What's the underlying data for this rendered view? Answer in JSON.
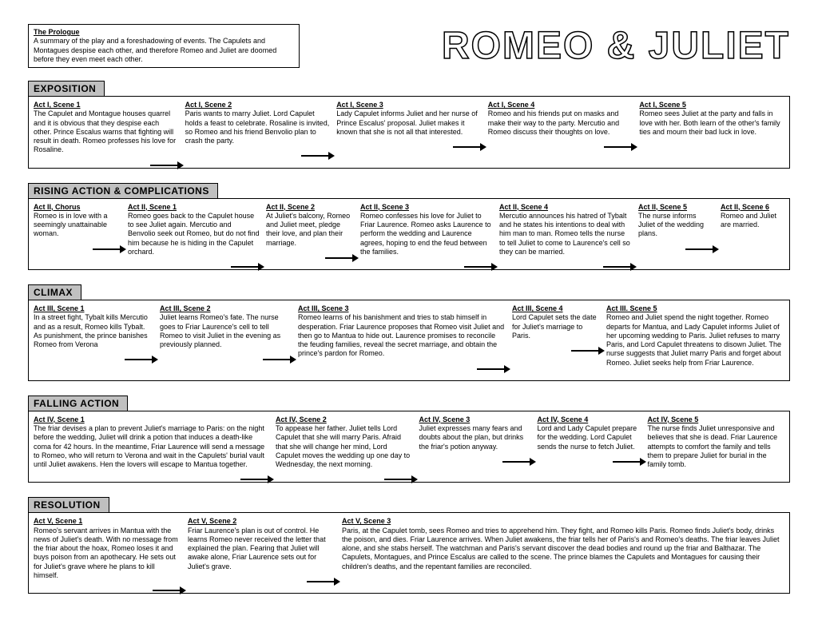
{
  "title": "ROMEO & JULIET",
  "prologue": {
    "heading": "The Prologue",
    "text": "A summary of the play and a foreshadowing of events. The Capulets and Montagues despise each other, and therefore Romeo and Juliet are doomed before they even meet each other."
  },
  "sections": {
    "exposition": {
      "header": "EXPOSITION",
      "scenes": [
        {
          "title": "Act I, Scene 1",
          "text": "The Capulet and Montague houses quarrel and it is obvious that they despise each other. Prince Escalus warns that fighting will result in death. Romeo professes his love for Rosaline."
        },
        {
          "title": "Act I, Scene 2",
          "text": "Paris wants to marry Juliet. Lord Capulet holds a feast to celebrate. Rosaline is invited, so Romeo and his friend Benvolio plan to crash the party."
        },
        {
          "title": "Act I, Scene 3",
          "text": "Lady Capulet informs Juliet and her nurse of Prince Escalus' proposal. Juliet makes it known that she is not all that interested."
        },
        {
          "title": "Act I, Scene 4",
          "text": "Romeo and his friends put on masks and make their way to the party. Mercutio and Romeo discuss their thoughts on love."
        },
        {
          "title": "Act I, Scene 5",
          "text": "Romeo sees Juliet at the party and falls in love with her. Both learn of the other's family ties and mourn their bad luck in love."
        }
      ]
    },
    "rising": {
      "header": "RISING ACTION & COMPLICATIONS",
      "scenes": [
        {
          "title": "Act II, Chorus",
          "text": "Romeo is in love with a seemingly unattainable woman."
        },
        {
          "title": "Act II, Scene 1",
          "text": "Romeo goes back to the Capulet house to see Juliet again. Mercutio and Benvolio seek out Romeo, but do not find him because he is hiding in the Capulet orchard."
        },
        {
          "title": "Act II, Scene 2",
          "text": "At Juliet's balcony, Romeo and Juliet meet, pledge their love, and plan their marriage."
        },
        {
          "title": "Act II, Scene 3",
          "text": "Romeo confesses his love for Juliet to Friar Laurence. Romeo asks Laurence to perform the wedding and Laurence agrees, hoping to end the feud between the families."
        },
        {
          "title": "Act II, Scene 4",
          "text": "Mercutio announces his hatred of Tybalt and he states his intentions to deal with him man to man. Romeo tells the nurse to tell Juliet to come to Laurence's cell so they can be married."
        },
        {
          "title": "Act II, Scene 5",
          "text": "The nurse informs Juliet of the wedding plans."
        },
        {
          "title": "Act II, Scene 6",
          "text": "Romeo and Juliet are married."
        }
      ]
    },
    "climax": {
      "header": "CLIMAX",
      "scenes": [
        {
          "title": "Act III, Scene 1",
          "text": "In a street fight, Tybalt kills Mercutio and as a result, Romeo kills Tybalt. As punishment, the prince banishes Romeo from Verona"
        },
        {
          "title": "Act III, Scene 2",
          "text": "Juliet learns Romeo's fate. The nurse goes to Friar Laurence's cell to tell Romeo to visit Juliet in the evening as previously planned."
        },
        {
          "title": "Act III, Scene 3",
          "text": "Romeo learns of his banishment and tries to stab himself in desperation. Friar Laurence proposes that Romeo visit Juliet and then go to Mantua to hide out. Laurence promises to reconcile the feuding families, reveal the secret marriage, and obtain the prince's pardon for Romeo."
        },
        {
          "title": "Act III, Scene 4",
          "text": "Lord Capulet sets the date for Juliet's marriage to Paris."
        },
        {
          "title": "Act III. Scene 5",
          "text": "Romeo and Juliet spend the night together. Romeo departs for Mantua, and Lady Capulet informs Juliet of her upcoming wedding to Paris. Juliet refuses to marry Paris, and Lord Capulet threatens to disown Juliet. The nurse suggests that Juliet marry Paris and forget about Romeo. Juliet seeks help from Friar Laurence."
        }
      ]
    },
    "falling": {
      "header": "FALLING ACTION",
      "scenes": [
        {
          "title": "Act IV, Scene 1",
          "text": "The friar devises a plan to prevent Juliet's marriage to Paris: on the night before the wedding, Juliet will drink a potion that induces a death-like coma for 42 hours. In the meantime, Friar Laurence will send a message to Romeo, who will return to Verona and wait in the Capulets' burial vault until Juliet awakens. Hen the lovers will escape to Mantua together."
        },
        {
          "title": "Act IV, Scene 2",
          "text": "To appease her father. Juliet tells Lord Capulet that she will marry Paris. Afraid that she will change her mind, Lord Capulet moves the wedding up one day to Wednesday, the next morning."
        },
        {
          "title": "Act IV, Scene 3",
          "text": "Juliet expresses many fears and doubts about the plan, but drinks the friar's potion anyway."
        },
        {
          "title": "Act IV, Scene 4",
          "text": "Lord and Lady Capulet prepare for the wedding. Lord Capulet sends the nurse to fetch Juliet."
        },
        {
          "title": "Act IV, Scene 5",
          "text": "The nurse finds Juliet unresponsive and believes that she is dead. Friar Laurence attempts to comfort the family and tells them to prepare Juliet for burial in the family tomb."
        }
      ]
    },
    "resolution": {
      "header": "RESOLUTION",
      "scenes": [
        {
          "title": "Act V, Scene 1",
          "text": "Romeo's servant arrives in Mantua with the news of Juliet's death. With no message from the friar about the hoax, Romeo loses it and buys poison from an apothecary.  He sets out for Juliet's grave where he plans to kill himself."
        },
        {
          "title": "Act V, Scene 2",
          "text": "Friar Laurence's plan is out of control. He learns Romeo never received the letter that explained the plan. Fearing that Juliet will awake alone, Friar Laurence sets out for Juliet's grave."
        },
        {
          "title": "Act V, Scene 3",
          "text": "Paris, at the Capulet tomb, sees Romeo and tries to apprehend him. They fight, and Romeo kills Paris. Romeo finds Juliet's body, drinks the poison, and dies. Friar Laurence arrives. When Juliet awakens, the friar tells her of Paris's and Romeo's deaths. The friar leaves Juliet alone, and she stabs herself. The watchman and Paris's servant discover the dead bodies and round up the friar and Balthazar. The Capulets, Montagues, and Prince Escalus are called to the scene. The prince blames the Capulets and Montagues for causing their children's deaths, and the repentant families are reconciled."
        }
      ]
    }
  }
}
